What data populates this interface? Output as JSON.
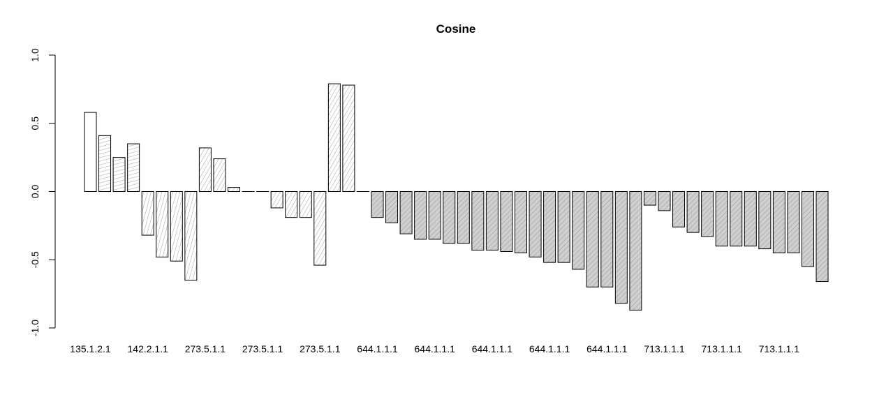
{
  "chart_data": {
    "type": "bar",
    "title": "Cosine",
    "xlabel": "",
    "ylabel": "",
    "ylim": [
      -1.0,
      1.0
    ],
    "y_ticks": [
      "-1.0",
      "-0.5",
      "0.0",
      "0.5",
      "1.0"
    ],
    "grid": false,
    "legend": "none",
    "categories": [
      "135.1.2.1",
      "",
      "",
      "",
      "142.2.1.1",
      "",
      "",
      "",
      "273.5.1.1",
      "",
      "",
      "",
      "273.5.1.1",
      "",
      "",
      "",
      "273.5.1.1",
      "",
      "",
      "",
      "644.1.1.1",
      "",
      "",
      "",
      "644.1.1.1",
      "",
      "",
      "",
      "644.1.1.1",
      "",
      "",
      "",
      "644.1.1.1",
      "",
      "",
      "",
      "644.1.1.1",
      "",
      "",
      "",
      "713.1.1.1",
      "",
      "",
      "",
      "713.1.1.1",
      "",
      "",
      "",
      "713.1.1.1",
      "",
      "",
      ""
    ],
    "values": [
      0.58,
      0.41,
      0.25,
      0.35,
      -0.32,
      -0.48,
      -0.51,
      -0.65,
      0.32,
      0.24,
      0.03,
      0.0,
      0.0,
      -0.12,
      -0.19,
      -0.19,
      -0.54,
      0.79,
      0.78,
      0.0,
      -0.19,
      -0.23,
      -0.31,
      -0.35,
      -0.35,
      -0.38,
      -0.38,
      -0.43,
      -0.43,
      -0.44,
      -0.45,
      -0.48,
      -0.52,
      -0.52,
      -0.57,
      -0.7,
      -0.7,
      -0.82,
      -0.87,
      -0.1,
      -0.14,
      -0.26,
      -0.3,
      -0.33,
      -0.4,
      -0.4,
      -0.4,
      -0.42,
      -0.45,
      -0.45,
      -0.55,
      -0.66
    ],
    "fill": [
      "#ffffff",
      "#ffffff",
      "#ffffff",
      "#ffffff",
      "#ffffff",
      "#ffffff",
      "#ffffff",
      "#ffffff",
      "#ffffff",
      "#ffffff",
      "#ffffff",
      "#ffffff",
      "#ffffff",
      "#ffffff",
      "#ffffff",
      "#ffffff",
      "#ffffff",
      "#ffffff",
      "#ffffff",
      "#ffffff",
      "#cfcfcf",
      "#cfcfcf",
      "#cfcfcf",
      "#cfcfcf",
      "#cfcfcf",
      "#cfcfcf",
      "#cfcfcf",
      "#cfcfcf",
      "#cfcfcf",
      "#cfcfcf",
      "#cfcfcf",
      "#cfcfcf",
      "#cfcfcf",
      "#cfcfcf",
      "#cfcfcf",
      "#cfcfcf",
      "#cfcfcf",
      "#cfcfcf",
      "#cfcfcf",
      "#cfcfcf",
      "#cfcfcf",
      "#cfcfcf",
      "#cfcfcf",
      "#cfcfcf",
      "#cfcfcf",
      "#cfcfcf",
      "#cfcfcf",
      "#cfcfcf",
      "#cfcfcf",
      "#cfcfcf",
      "#cfcfcf",
      "#cfcfcf"
    ],
    "hatch_angle": [
      null,
      15,
      15,
      15,
      75,
      75,
      75,
      75,
      60,
      60,
      60,
      60,
      60,
      60,
      60,
      60,
      60,
      60,
      60,
      60,
      45,
      45,
      45,
      45,
      45,
      45,
      45,
      45,
      45,
      45,
      45,
      45,
      45,
      45,
      45,
      45,
      45,
      45,
      45,
      45,
      45,
      45,
      45,
      45,
      45,
      45,
      45,
      45,
      45,
      45,
      45,
      45
    ]
  }
}
